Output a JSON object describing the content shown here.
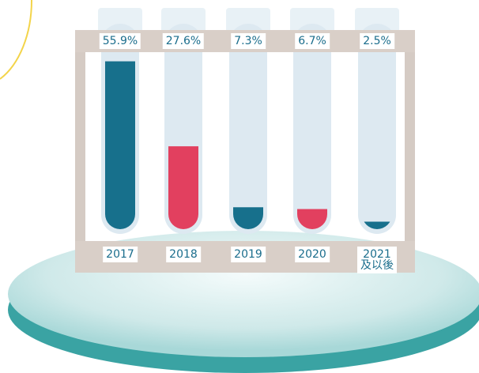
{
  "chart_data": {
    "type": "bar",
    "categories": [
      "2017",
      "2018",
      "2019",
      "2020",
      "2021\n及以後"
    ],
    "values": [
      55.9,
      27.6,
      7.3,
      6.7,
      2.5
    ],
    "value_labels": [
      "55.9%",
      "27.6%",
      "7.3%",
      "6.7%",
      "2.5%"
    ],
    "colors": [
      "#17708c",
      "#e2405f",
      "#17708c",
      "#e2405f",
      "#17708c"
    ]
  }
}
